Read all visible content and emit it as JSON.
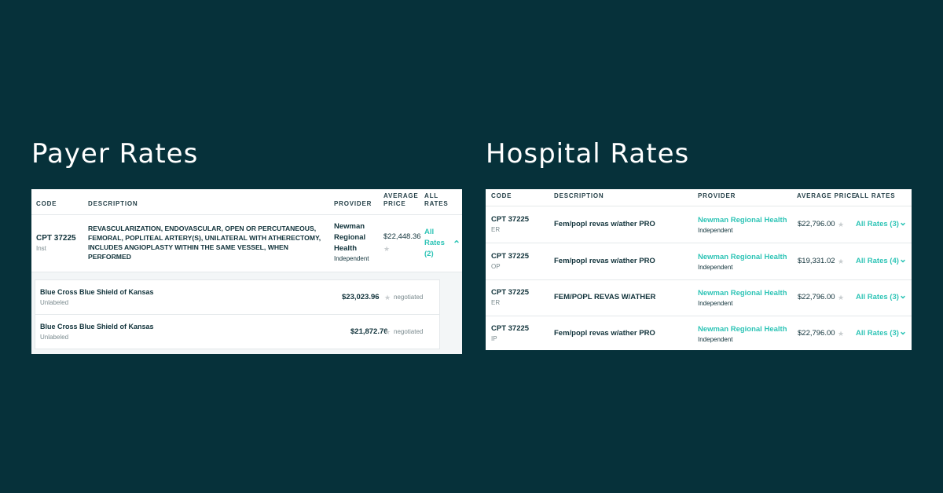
{
  "payer": {
    "title": "Payer Rates",
    "headers": {
      "code": "CODE",
      "description": "DESCRIPTION",
      "provider": "PROVIDER",
      "avg_price_1": "AVERAGE",
      "avg_price_2": "PRICE",
      "all_rates_1": "ALL",
      "all_rates_2": "RATES"
    },
    "row": {
      "code": "CPT 37225",
      "setting": "Inst",
      "description": "REVASCULARIZATION, ENDOVASCULAR, OPEN OR PERCUTANEOUS, FEMORAL, POPLITEAL ARTERY(S), UNILATERAL WITH ATHERECTOMY, INCLUDES ANGIOPLASTY WITHIN THE SAME VESSEL, WHEN PERFORMED",
      "provider_line1": "Newman",
      "provider_line2": "Regional",
      "provider_line3": "Health",
      "provider_type": "Independent",
      "avg_price": "$22,448.36",
      "all_rates_1": "All",
      "all_rates_2": "Rates",
      "all_rates_3": "(2)"
    },
    "rates": [
      {
        "payer": "Blue Cross Blue Shield of Kansas",
        "label": "Unlabeled",
        "price": "$23,023.96",
        "type": "negotiated"
      },
      {
        "payer": "Blue Cross Blue Shield of Kansas",
        "label": "Unlabeled",
        "price": "$21,872.76",
        "type": "negotiated"
      }
    ]
  },
  "hospital": {
    "title": "Hospital Rates",
    "headers": {
      "code": "CODE",
      "description": "DESCRIPTION",
      "provider": "PROVIDER",
      "avg_price": "AVERAGE PRICE",
      "all_rates": "ALL RATES"
    },
    "rows": [
      {
        "code": "CPT 37225",
        "setting": "ER",
        "description": "Fem/popl revas w/ather PRO",
        "provider": "Newman Regional Health",
        "provider_type": "Independent",
        "avg_price": "$22,796.00",
        "all_rates": "All Rates (3)"
      },
      {
        "code": "CPT 37225",
        "setting": "OP",
        "description": "Fem/popl revas w/ather PRO",
        "provider": "Newman Regional Health",
        "provider_type": "Independent",
        "avg_price": "$19,331.02",
        "all_rates": "All Rates (4)"
      },
      {
        "code": "CPT 37225",
        "setting": "ER",
        "description": "FEM/POPL REVAS W/ATHER",
        "provider": "Newman Regional Health",
        "provider_type": "Independent",
        "avg_price": "$22,796.00",
        "all_rates": "All Rates (3)"
      },
      {
        "code": "CPT 37225",
        "setting": "IP",
        "description": "Fem/popl revas w/ather PRO",
        "provider": "Newman Regional Health",
        "provider_type": "Independent",
        "avg_price": "$22,796.00",
        "all_rates": "All Rates (3)"
      }
    ]
  },
  "icons": {
    "star": "★",
    "chevron_up": "⌃",
    "chevron_down": "⌄"
  },
  "colors": {
    "background": "#06313a",
    "accent": "#2ec4b6",
    "text": "#10323a"
  }
}
